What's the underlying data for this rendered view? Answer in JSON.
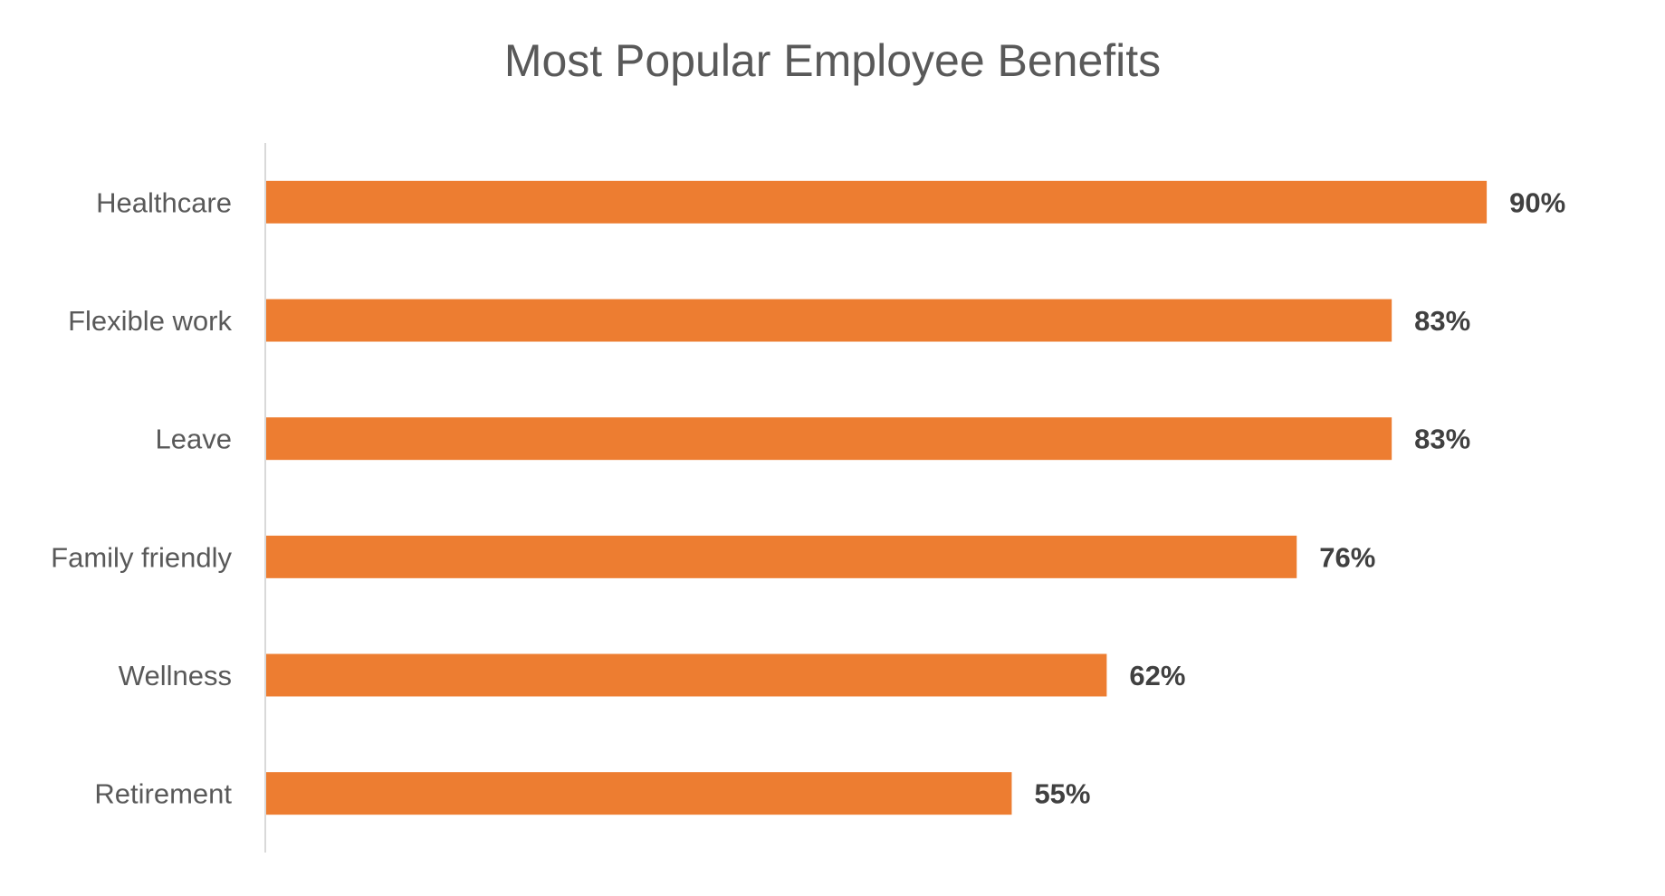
{
  "chart_data": {
    "type": "bar",
    "orientation": "horizontal",
    "title": "Most Popular Employee Benefits",
    "categories": [
      "Healthcare",
      "Flexible work",
      "Leave",
      "Family friendly",
      "Wellness",
      "Retirement"
    ],
    "values": [
      90,
      83,
      83,
      76,
      62,
      55
    ],
    "data_labels": [
      "90%",
      "83%",
      "83%",
      "76%",
      "62%",
      "55%"
    ],
    "xlim": [
      0,
      100
    ],
    "xlabel": "",
    "ylabel": "",
    "grid": false,
    "legend": "none",
    "bar_color": "#ED7D31",
    "text_color": "#595959",
    "data_label_color": "#404040"
  }
}
